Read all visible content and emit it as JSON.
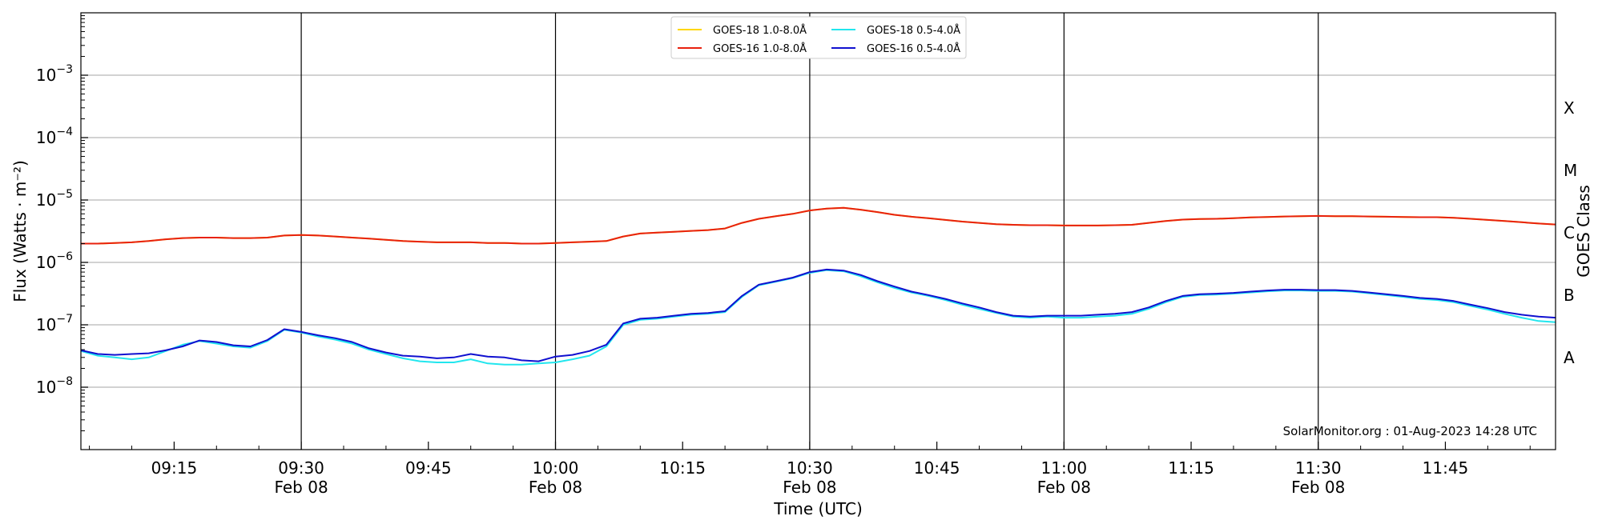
{
  "chart_data": {
    "type": "line",
    "xlabel": "Time (UTC)",
    "ylabel": "Flux (Watts · m⁻²)",
    "y2label": "GOES Class",
    "y_scale": "log",
    "ylim": [
      1e-09,
      0.01
    ],
    "xlim": [
      "09:04",
      "11:58"
    ],
    "grid": "horizontal major lines",
    "legend_position": "top-center",
    "x_ticks": [
      {
        "time": "09:15",
        "label": "09:15",
        "sub": ""
      },
      {
        "time": "09:30",
        "label": "09:30",
        "sub": "Feb 08"
      },
      {
        "time": "09:45",
        "label": "09:45",
        "sub": ""
      },
      {
        "time": "10:00",
        "label": "10:00",
        "sub": "Feb 08"
      },
      {
        "time": "10:15",
        "label": "10:15",
        "sub": ""
      },
      {
        "time": "10:30",
        "label": "10:30",
        "sub": "Feb 08"
      },
      {
        "time": "10:45",
        "label": "10:45",
        "sub": ""
      },
      {
        "time": "11:00",
        "label": "11:00",
        "sub": "Feb 08"
      },
      {
        "time": "11:15",
        "label": "11:15",
        "sub": ""
      },
      {
        "time": "11:30",
        "label": "11:30",
        "sub": "Feb 08"
      },
      {
        "time": "11:45",
        "label": "11:45",
        "sub": ""
      }
    ],
    "vertical_markers": [
      "09:30",
      "10:00",
      "10:30",
      "11:00",
      "11:30"
    ],
    "y_ticks": [
      {
        "value": 1e-08,
        "base": "10",
        "exp": "−8"
      },
      {
        "value": 1e-07,
        "base": "10",
        "exp": "−7"
      },
      {
        "value": 1e-06,
        "base": "10",
        "exp": "−6"
      },
      {
        "value": 1e-05,
        "base": "10",
        "exp": "−5"
      },
      {
        "value": 0.0001,
        "base": "10",
        "exp": "−4"
      },
      {
        "value": 0.001,
        "base": "10",
        "exp": "−3"
      }
    ],
    "goes_classes": [
      {
        "label": "A",
        "value": 3e-08
      },
      {
        "label": "B",
        "value": 3e-07
      },
      {
        "label": "C",
        "value": 3e-06
      },
      {
        "label": "M",
        "value": 3e-05
      },
      {
        "label": "X",
        "value": 0.0003
      }
    ],
    "x": [
      "09:04",
      "09:06",
      "09:08",
      "09:10",
      "09:12",
      "09:14",
      "09:16",
      "09:18",
      "09:20",
      "09:22",
      "09:24",
      "09:26",
      "09:28",
      "09:30",
      "09:32",
      "09:34",
      "09:36",
      "09:38",
      "09:40",
      "09:42",
      "09:44",
      "09:46",
      "09:48",
      "09:50",
      "09:52",
      "09:54",
      "09:56",
      "09:58",
      "10:00",
      "10:02",
      "10:04",
      "10:06",
      "10:08",
      "10:10",
      "10:12",
      "10:14",
      "10:16",
      "10:18",
      "10:20",
      "10:22",
      "10:24",
      "10:26",
      "10:28",
      "10:30",
      "10:32",
      "10:34",
      "10:36",
      "10:38",
      "10:40",
      "10:42",
      "10:44",
      "10:46",
      "10:48",
      "10:50",
      "10:52",
      "10:54",
      "10:56",
      "10:58",
      "11:00",
      "11:02",
      "11:04",
      "11:06",
      "11:08",
      "11:10",
      "11:12",
      "11:14",
      "11:16",
      "11:18",
      "11:20",
      "11:22",
      "11:24",
      "11:26",
      "11:28",
      "11:30",
      "11:32",
      "11:34",
      "11:36",
      "11:38",
      "11:40",
      "11:42",
      "11:44",
      "11:46",
      "11:48",
      "11:50",
      "11:52",
      "11:54",
      "11:56",
      "11:58"
    ],
    "series": [
      {
        "name": "GOES-18 1.0-8.0Å",
        "color": "#ffd700",
        "values": [
          2e-06,
          2e-06,
          2.05e-06,
          2.1e-06,
          2.2e-06,
          2.35e-06,
          2.45e-06,
          2.5e-06,
          2.5e-06,
          2.45e-06,
          2.45e-06,
          2.5e-06,
          2.7e-06,
          2.75e-06,
          2.7e-06,
          2.6e-06,
          2.5e-06,
          2.4e-06,
          2.3e-06,
          2.2e-06,
          2.15e-06,
          2.1e-06,
          2.1e-06,
          2.1e-06,
          2.05e-06,
          2.05e-06,
          2e-06,
          2e-06,
          2.05e-06,
          2.1e-06,
          2.15e-06,
          2.2e-06,
          2.6e-06,
          2.9e-06,
          3e-06,
          3.1e-06,
          3.2e-06,
          3.3e-06,
          3.5e-06,
          4.3e-06,
          5e-06,
          5.5e-06,
          6e-06,
          6.8e-06,
          7.3e-06,
          7.5e-06,
          7e-06,
          6.4e-06,
          5.8e-06,
          5.4e-06,
          5.1e-06,
          4.8e-06,
          4.5e-06,
          4.3e-06,
          4.1e-06,
          4e-06,
          3.95e-06,
          3.95e-06,
          3.9e-06,
          3.9e-06,
          3.9e-06,
          3.95e-06,
          4e-06,
          4.3e-06,
          4.6e-06,
          4.85e-06,
          4.95e-06,
          5e-06,
          5.1e-06,
          5.25e-06,
          5.35e-06,
          5.45e-06,
          5.5e-06,
          5.55e-06,
          5.5e-06,
          5.5e-06,
          5.45e-06,
          5.4e-06,
          5.35e-06,
          5.3e-06,
          5.3e-06,
          5.2e-06,
          5e-06,
          4.8e-06,
          4.6e-06,
          4.4e-06,
          4.2e-06,
          4.05e-06
        ]
      },
      {
        "name": "GOES-16 1.0-8.0Å",
        "color": "#e8210e",
        "values": [
          2e-06,
          2e-06,
          2.05e-06,
          2.1e-06,
          2.2e-06,
          2.35e-06,
          2.45e-06,
          2.5e-06,
          2.5e-06,
          2.45e-06,
          2.45e-06,
          2.5e-06,
          2.7e-06,
          2.75e-06,
          2.7e-06,
          2.6e-06,
          2.5e-06,
          2.4e-06,
          2.3e-06,
          2.2e-06,
          2.15e-06,
          2.1e-06,
          2.1e-06,
          2.1e-06,
          2.05e-06,
          2.05e-06,
          2e-06,
          2e-06,
          2.05e-06,
          2.1e-06,
          2.15e-06,
          2.2e-06,
          2.6e-06,
          2.9e-06,
          3e-06,
          3.1e-06,
          3.2e-06,
          3.3e-06,
          3.5e-06,
          4.3e-06,
          5e-06,
          5.5e-06,
          6e-06,
          6.8e-06,
          7.3e-06,
          7.5e-06,
          7e-06,
          6.4e-06,
          5.8e-06,
          5.4e-06,
          5.1e-06,
          4.8e-06,
          4.5e-06,
          4.3e-06,
          4.1e-06,
          4e-06,
          3.95e-06,
          3.95e-06,
          3.9e-06,
          3.9e-06,
          3.9e-06,
          3.95e-06,
          4e-06,
          4.3e-06,
          4.6e-06,
          4.85e-06,
          4.95e-06,
          5e-06,
          5.1e-06,
          5.25e-06,
          5.35e-06,
          5.45e-06,
          5.5e-06,
          5.55e-06,
          5.5e-06,
          5.5e-06,
          5.45e-06,
          5.4e-06,
          5.35e-06,
          5.3e-06,
          5.3e-06,
          5.2e-06,
          5e-06,
          4.8e-06,
          4.6e-06,
          4.4e-06,
          4.2e-06,
          4.05e-06
        ]
      },
      {
        "name": "GOES-18 0.5-4.0Å",
        "color": "#22e6ee",
        "values": [
          3.8e-08,
          3.2e-08,
          3e-08,
          2.8e-08,
          3e-08,
          3.8e-08,
          4.8e-08,
          5.5e-08,
          5e-08,
          4.5e-08,
          4.3e-08,
          5.5e-08,
          8.3e-08,
          7.5e-08,
          6.5e-08,
          5.8e-08,
          5e-08,
          4e-08,
          3.4e-08,
          2.9e-08,
          2.6e-08,
          2.5e-08,
          2.5e-08,
          2.8e-08,
          2.4e-08,
          2.3e-08,
          2.3e-08,
          2.4e-08,
          2.5e-08,
          2.8e-08,
          3.2e-08,
          4.5e-08,
          1e-07,
          1.2e-07,
          1.25e-07,
          1.35e-07,
          1.45e-07,
          1.5e-07,
          1.6e-07,
          2.8e-07,
          4.3e-07,
          4.9e-07,
          5.6e-07,
          6.8e-07,
          7.5e-07,
          7.2e-07,
          6e-07,
          4.8e-07,
          3.9e-07,
          3.3e-07,
          2.9e-07,
          2.5e-07,
          2.1e-07,
          1.8e-07,
          1.55e-07,
          1.35e-07,
          1.3e-07,
          1.35e-07,
          1.3e-07,
          1.3e-07,
          1.35e-07,
          1.4e-07,
          1.5e-07,
          1.8e-07,
          2.3e-07,
          2.8e-07,
          3e-07,
          3.05e-07,
          3.15e-07,
          3.3e-07,
          3.45e-07,
          3.55e-07,
          3.55e-07,
          3.5e-07,
          3.5e-07,
          3.4e-07,
          3.2e-07,
          3e-07,
          2.8e-07,
          2.6e-07,
          2.5e-07,
          2.3e-07,
          2e-07,
          1.75e-07,
          1.5e-07,
          1.3e-07,
          1.15e-07,
          1.1e-07
        ]
      },
      {
        "name": "GOES-16 0.5-4.0Å",
        "color": "#1010d0",
        "values": [
          3.9e-08,
          3.4e-08,
          3.3e-08,
          3.4e-08,
          3.5e-08,
          3.9e-08,
          4.5e-08,
          5.6e-08,
          5.3e-08,
          4.7e-08,
          4.5e-08,
          5.7e-08,
          8.5e-08,
          7.7e-08,
          6.8e-08,
          6.1e-08,
          5.3e-08,
          4.2e-08,
          3.6e-08,
          3.2e-08,
          3.1e-08,
          2.9e-08,
          3e-08,
          3.4e-08,
          3.1e-08,
          3e-08,
          2.7e-08,
          2.6e-08,
          3.1e-08,
          3.3e-08,
          3.8e-08,
          4.8e-08,
          1.05e-07,
          1.25e-07,
          1.3e-07,
          1.4e-07,
          1.5e-07,
          1.55e-07,
          1.65e-07,
          2.9e-07,
          4.4e-07,
          5e-07,
          5.7e-07,
          7e-07,
          7.7e-07,
          7.4e-07,
          6.3e-07,
          5e-07,
          4.1e-07,
          3.4e-07,
          3e-07,
          2.6e-07,
          2.2e-07,
          1.9e-07,
          1.6e-07,
          1.4e-07,
          1.35e-07,
          1.4e-07,
          1.4e-07,
          1.4e-07,
          1.45e-07,
          1.5e-07,
          1.6e-07,
          1.9e-07,
          2.4e-07,
          2.9e-07,
          3.1e-07,
          3.15e-07,
          3.25e-07,
          3.4e-07,
          3.55e-07,
          3.65e-07,
          3.65e-07,
          3.6e-07,
          3.6e-07,
          3.5e-07,
          3.3e-07,
          3.1e-07,
          2.9e-07,
          2.7e-07,
          2.6e-07,
          2.4e-07,
          2.1e-07,
          1.85e-07,
          1.6e-07,
          1.45e-07,
          1.35e-07,
          1.3e-07
        ]
      }
    ],
    "credit": "SolarMonitor.org : 01-Aug-2023 14:28 UTC"
  }
}
